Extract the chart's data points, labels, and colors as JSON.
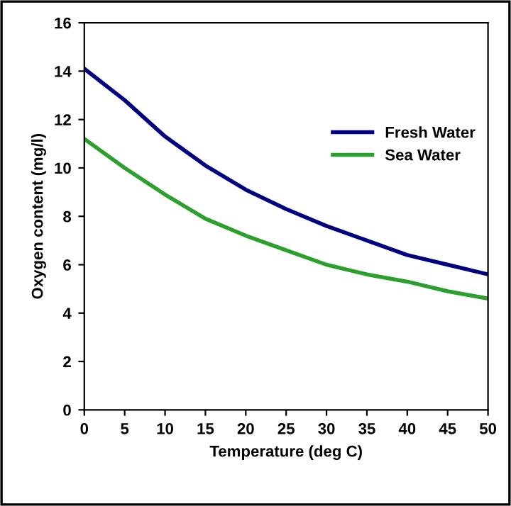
{
  "chart_data": {
    "type": "line",
    "xlabel": "Temperature (deg C)",
    "ylabel": "Oxygen content (mg/l)",
    "x": [
      0,
      5,
      10,
      15,
      20,
      25,
      30,
      35,
      40,
      45,
      50
    ],
    "series": [
      {
        "name": "Fresh Water",
        "color": "#000080",
        "values": [
          14.1,
          12.8,
          11.3,
          10.1,
          9.1,
          8.3,
          7.6,
          7.0,
          6.4,
          6.0,
          5.6
        ]
      },
      {
        "name": "Sea Water",
        "color": "#2ca02c",
        "values": [
          11.2,
          10.0,
          8.9,
          7.9,
          7.2,
          6.6,
          6.0,
          5.6,
          5.3,
          4.9,
          4.6
        ]
      }
    ],
    "xlim": [
      0,
      50
    ],
    "xticks": [
      0,
      5,
      10,
      15,
      20,
      25,
      30,
      35,
      40,
      45,
      50
    ],
    "ylim": [
      0,
      16
    ],
    "yticks": [
      0,
      2,
      4,
      6,
      8,
      10,
      12,
      14,
      16
    ],
    "grid": false,
    "legend": "right",
    "marker": "none",
    "line_style": "solid"
  }
}
